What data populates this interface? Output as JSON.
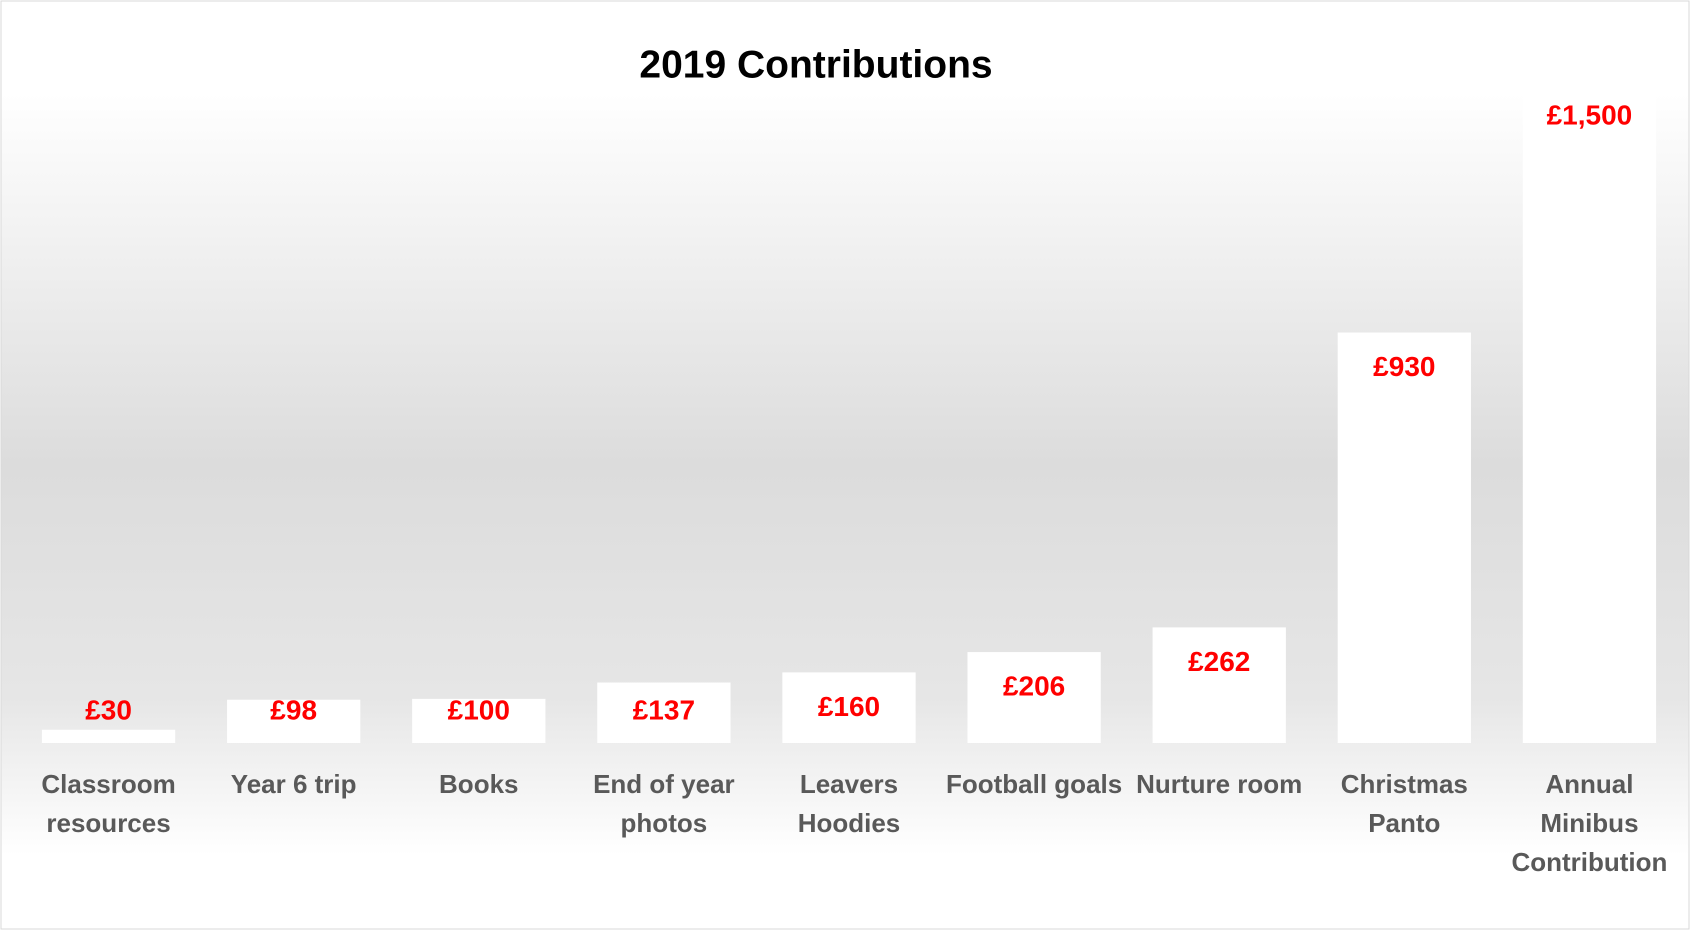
{
  "chart_data": {
    "type": "bar",
    "title": "2019 Contributions",
    "categories": [
      "Classroom resources",
      "Year 6 trip",
      "Books",
      "End of year photos",
      "Leavers Hoodies",
      "Football goals",
      "Nurture room",
      "Christmas Panto",
      "Annual Minibus Contribution"
    ],
    "values": [
      30,
      98,
      100,
      137,
      160,
      206,
      262,
      930,
      1500
    ],
    "value_labels": [
      "£30",
      "£98",
      "£100",
      "£137",
      "£160",
      "£206",
      "£262",
      "£930",
      "£1,500"
    ],
    "color": "#ffffff",
    "label_color": "#ff0000"
  }
}
